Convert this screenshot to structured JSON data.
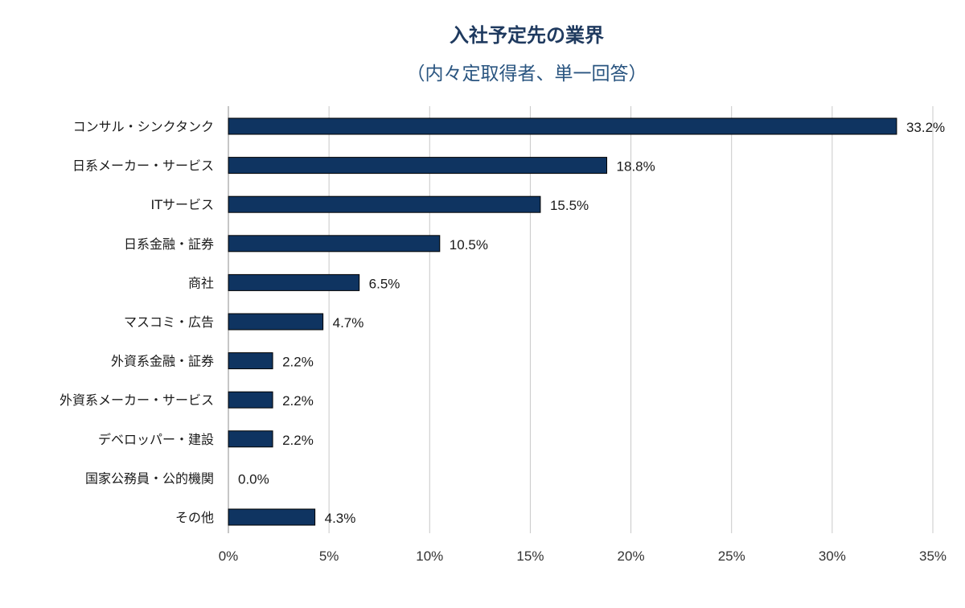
{
  "chart_data": {
    "type": "bar",
    "orientation": "horizontal",
    "title": "入社予定先の業界",
    "subtitle": "（内々定取得者、単一回答）",
    "categories": [
      "コンサル・シンクタンク",
      "日系メーカー・サービス",
      "ITサービス",
      "日系金融・証券",
      "商社",
      "マスコミ・広告",
      "外資系金融・証券",
      "外資系メーカー・サービス",
      "デベロッパー・建設",
      "国家公務員・公的機関",
      "その他"
    ],
    "values": [
      33.2,
      18.8,
      15.5,
      10.5,
      6.5,
      4.7,
      2.2,
      2.2,
      2.2,
      0.0,
      4.3
    ],
    "value_labels": [
      "33.2%",
      "18.8%",
      "15.5%",
      "10.5%",
      "6.5%",
      "4.7%",
      "2.2%",
      "2.2%",
      "2.2%",
      "0.0%",
      "4.3%"
    ],
    "xlim": [
      0,
      35
    ],
    "xticks": [
      0,
      5,
      10,
      15,
      20,
      25,
      30,
      35
    ],
    "xtick_labels": [
      "0%",
      "5%",
      "10%",
      "15%",
      "20%",
      "25%",
      "30%",
      "35%"
    ],
    "grid": "vertical",
    "bar_color": "#0f3461",
    "bar_edge_color": "#000000"
  }
}
